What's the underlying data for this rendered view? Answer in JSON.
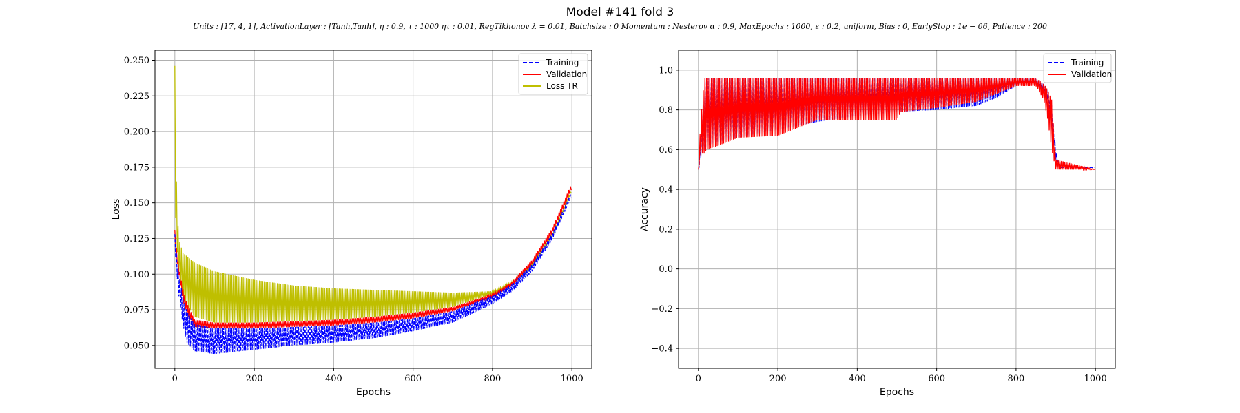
{
  "figure": {
    "title": "Model #141 fold 3",
    "subtitle": "Units : [17, 4, 1], ActivationLayer : [Tanh,Tanh], η : 0.9, τ : 1000 ητ : 0.01, RegTikhonov λ = 0.01, Batchsize : 0 Momentum : Nesterov α : 0.9, MaxEpochs : 1000, ε : 0.2, uniform, Bias : 0, EarlyStop : 1e − 06, Patience : 200"
  },
  "colors": {
    "training": "#0000ff",
    "validation": "#ff0000",
    "loss_tr": "#bfbf00",
    "grid": "#b0b0b0"
  },
  "chart_data": [
    {
      "type": "line",
      "ylabel": "Loss",
      "xlabel": "Epochs",
      "xlim": [
        -50,
        1050
      ],
      "ylim": [
        0.034,
        0.257
      ],
      "xticks": [
        0,
        200,
        400,
        600,
        800,
        1000
      ],
      "xtick_labels": [
        "0",
        "200",
        "400",
        "600",
        "800",
        "1000"
      ],
      "yticks": [
        0.05,
        0.075,
        0.1,
        0.125,
        0.15,
        0.175,
        0.2,
        0.225,
        0.25
      ],
      "ytick_labels": [
        "0.050",
        "0.075",
        "0.100",
        "0.125",
        "0.150",
        "0.175",
        "0.200",
        "0.225",
        "0.250"
      ],
      "grid": true,
      "legend_position": "top-right",
      "series": [
        {
          "name": "Loss TR",
          "style": "solid-oscillating",
          "color_key": "loss_tr",
          "x": [
            0,
            2,
            5,
            10,
            20,
            50,
            100,
            200,
            300,
            400,
            500,
            600,
            700,
            800,
            850,
            900,
            950,
            1000
          ],
          "upper": [
            0.246,
            0.2,
            0.15,
            0.125,
            0.115,
            0.108,
            0.102,
            0.096,
            0.092,
            0.09,
            0.089,
            0.088,
            0.087,
            0.088,
            0.095,
            0.108,
            0.128,
            0.16
          ],
          "lower": [
            0.245,
            0.14,
            0.12,
            0.1,
            0.082,
            0.07,
            0.066,
            0.066,
            0.067,
            0.068,
            0.07,
            0.073,
            0.077,
            0.086,
            0.093,
            0.106,
            0.126,
            0.158
          ]
        },
        {
          "name": "Validation",
          "style": "solid-oscillating",
          "color_key": "validation",
          "x": [
            0,
            5,
            10,
            20,
            30,
            50,
            100,
            200,
            300,
            400,
            500,
            600,
            700,
            800,
            850,
            900,
            950,
            1000
          ],
          "upper": [
            0.131,
            0.115,
            0.105,
            0.09,
            0.08,
            0.068,
            0.066,
            0.066,
            0.067,
            0.068,
            0.07,
            0.073,
            0.077,
            0.086,
            0.095,
            0.11,
            0.132,
            0.164
          ],
          "lower": [
            0.125,
            0.11,
            0.1,
            0.082,
            0.072,
            0.063,
            0.062,
            0.062,
            0.063,
            0.064,
            0.066,
            0.069,
            0.074,
            0.084,
            0.092,
            0.107,
            0.128,
            0.16
          ]
        },
        {
          "name": "Training",
          "style": "dashed-oscillating",
          "color_key": "training",
          "x": [
            0,
            5,
            10,
            20,
            30,
            50,
            100,
            200,
            300,
            400,
            500,
            600,
            700,
            800,
            850,
            900,
            950,
            1000
          ],
          "upper": [
            0.128,
            0.112,
            0.1,
            0.085,
            0.074,
            0.065,
            0.062,
            0.062,
            0.063,
            0.064,
            0.066,
            0.069,
            0.074,
            0.085,
            0.093,
            0.107,
            0.128,
            0.158
          ],
          "lower": [
            0.12,
            0.1,
            0.085,
            0.065,
            0.052,
            0.046,
            0.044,
            0.047,
            0.05,
            0.052,
            0.055,
            0.06,
            0.066,
            0.079,
            0.088,
            0.102,
            0.124,
            0.155
          ]
        }
      ],
      "legend": [
        "Training",
        "Validation",
        "Loss TR"
      ]
    },
    {
      "type": "line",
      "ylabel": "Accuracy",
      "xlabel": "Epochs",
      "xlim": [
        -50,
        1050
      ],
      "ylim": [
        -0.5,
        1.1
      ],
      "xticks": [
        0,
        200,
        400,
        600,
        800,
        1000
      ],
      "xtick_labels": [
        "0",
        "200",
        "400",
        "600",
        "800",
        "1000"
      ],
      "yticks": [
        -0.4,
        -0.2,
        0.0,
        0.2,
        0.4,
        0.6,
        0.8,
        1.0
      ],
      "ytick_labels": [
        "−0.4",
        "−0.2",
        "0.0",
        "0.2",
        "0.4",
        "0.6",
        "0.8",
        "1.0"
      ],
      "grid": true,
      "legend_position": "top-right",
      "series": [
        {
          "name": "Training",
          "style": "dashed-oscillating",
          "color_key": "training",
          "x": [
            0,
            3,
            5,
            8,
            15,
            20,
            50,
            100,
            200,
            300,
            400,
            500,
            600,
            700,
            750,
            800,
            820,
            850,
            870,
            880,
            890,
            900,
            910,
            1000
          ],
          "upper": [
            0.5,
            0.6,
            0.65,
            0.75,
            0.9,
            0.96,
            0.96,
            0.96,
            0.96,
            0.96,
            0.96,
            0.96,
            0.96,
            0.96,
            0.96,
            0.96,
            0.96,
            0.96,
            0.93,
            0.9,
            0.82,
            0.6,
            0.51,
            0.51
          ],
          "lower": [
            0.5,
            0.52,
            0.55,
            0.58,
            0.6,
            0.62,
            0.64,
            0.66,
            0.7,
            0.74,
            0.77,
            0.79,
            0.8,
            0.82,
            0.86,
            0.92,
            0.93,
            0.93,
            0.9,
            0.85,
            0.72,
            0.55,
            0.51,
            0.51
          ]
        },
        {
          "name": "Validation",
          "style": "solid-oscillating",
          "color_key": "validation",
          "x": [
            0,
            3,
            5,
            8,
            15,
            20,
            50,
            100,
            200,
            250,
            300,
            400,
            500,
            510,
            600,
            700,
            750,
            800,
            850,
            870,
            880,
            890,
            900,
            1000
          ],
          "upper": [
            0.5,
            0.65,
            0.7,
            0.8,
            0.96,
            0.96,
            0.96,
            0.96,
            0.96,
            0.96,
            0.96,
            0.96,
            0.96,
            0.96,
            0.96,
            0.96,
            0.96,
            0.96,
            0.96,
            0.93,
            0.9,
            0.85,
            0.55,
            0.5
          ],
          "lower": [
            0.5,
            0.54,
            0.56,
            0.58,
            0.58,
            0.6,
            0.62,
            0.66,
            0.67,
            0.71,
            0.75,
            0.75,
            0.75,
            0.79,
            0.81,
            0.84,
            0.88,
            0.92,
            0.92,
            0.85,
            0.75,
            0.6,
            0.5,
            0.5
          ]
        }
      ],
      "legend": [
        "Training",
        "Validation"
      ]
    }
  ]
}
